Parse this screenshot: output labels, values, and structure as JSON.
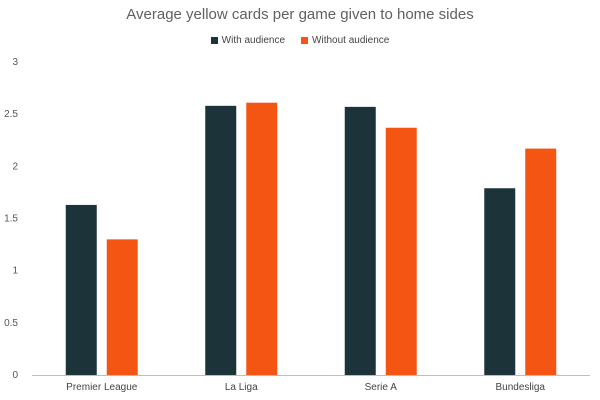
{
  "chart_data": {
    "type": "bar",
    "title": "Average yellow cards per game given to home sides",
    "categories": [
      "Premier League",
      "La Liga",
      "Serie A",
      "Bundesliga"
    ],
    "series": [
      {
        "name": "With audience",
        "color": "#1c3439",
        "values": [
          1.63,
          2.58,
          2.57,
          1.79
        ]
      },
      {
        "name": "Without audience",
        "color": "#f45513",
        "values": [
          1.3,
          2.61,
          2.37,
          2.17
        ]
      }
    ],
    "yticks": [
      "0",
      "0.5",
      "1",
      "1.5",
      "2",
      "2.5",
      "3"
    ],
    "ylim": [
      0,
      3
    ],
    "xlabel": "",
    "ylabel": "",
    "grid": false,
    "legend_position": "top"
  }
}
